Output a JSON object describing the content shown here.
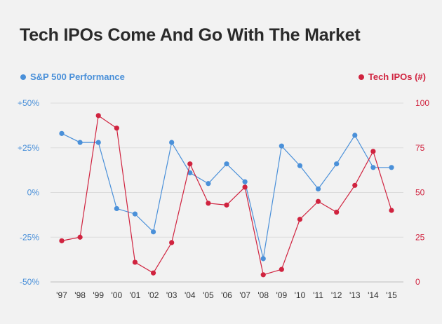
{
  "chart_data": {
    "type": "line",
    "title": "Tech IPOs Come And Go With The Market",
    "categories": [
      "'97",
      "'98",
      "'99",
      "'00",
      "'01",
      "'02",
      "'03",
      "'04",
      "'05",
      "'06",
      "'07",
      "'08",
      "'09",
      "'10",
      "'11",
      "'12",
      "'13",
      "'14",
      "'15"
    ],
    "series": [
      {
        "name": "S&P 500 Performance",
        "axis": "left",
        "color": "#4a90d9",
        "values": [
          33,
          28,
          28,
          -9,
          -12,
          -22,
          28,
          11,
          5,
          16,
          6,
          -37,
          26,
          15,
          2,
          16,
          32,
          14,
          14
        ]
      },
      {
        "name": "Tech IPOs (#)",
        "axis": "right",
        "color": "#d0233f",
        "values": [
          23,
          25,
          93,
          86,
          11,
          5,
          22,
          66,
          44,
          43,
          53,
          4,
          7,
          35,
          45,
          39,
          54,
          73,
          40
        ]
      }
    ],
    "left_axis": {
      "ylim": [
        -50,
        50
      ],
      "ticks": [
        50,
        25,
        0,
        -25,
        -50
      ],
      "tick_labels": [
        "+50%",
        "+25%",
        "0%",
        "-25%",
        "-50%"
      ],
      "color": "#4a90d9"
    },
    "right_axis": {
      "ylim": [
        0,
        100
      ],
      "ticks": [
        100,
        75,
        50,
        25,
        0
      ],
      "tick_labels": [
        "100",
        "75",
        "50",
        "25",
        "0"
      ],
      "color": "#d0233f"
    },
    "legend": {
      "left_label": "S&P 500 Performance",
      "right_label": "Tech IPOs (#)"
    },
    "grid": true
  }
}
